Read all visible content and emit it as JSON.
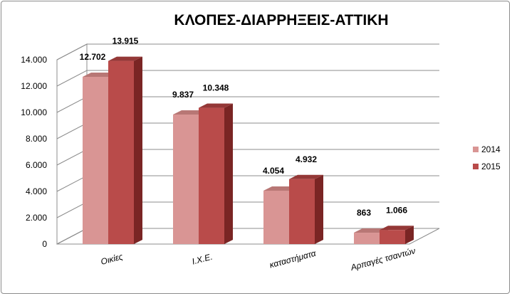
{
  "chart_data": {
    "type": "bar",
    "title": "ΚΛΟΠΕΣ-ΔΙΑΡΡΗΞΕΙΣ-ΑΤΤΙΚΗ",
    "xlabel": "",
    "ylabel": "",
    "categories": [
      "Οικίες",
      "Ι.Χ.Ε.",
      "καταστήματα",
      "Αρπαγές τσαντών"
    ],
    "series": [
      {
        "name": "2014",
        "values": [
          12702,
          9837,
          4054,
          863
        ],
        "labels": [
          "12.702",
          "9.837",
          "4.054",
          "863"
        ],
        "color": "#d99594",
        "side_color": "#a46060",
        "top_color": "#b87775"
      },
      {
        "name": "2015",
        "values": [
          13915,
          10348,
          4932,
          1066
        ],
        "labels": [
          "13.915",
          "10.348",
          "4.932",
          "1.066"
        ],
        "color": "#b94b4a",
        "side_color": "#7a2524",
        "top_color": "#943837"
      }
    ],
    "ylim": [
      0,
      14000
    ],
    "yticks": [
      0,
      2000,
      4000,
      6000,
      8000,
      10000,
      12000,
      14000
    ],
    "ytick_labels": [
      "0",
      "2.000",
      "4.000",
      "6.000",
      "8.000",
      "10.000",
      "12.000",
      "14.000"
    ],
    "grid": true,
    "legend_position": "right",
    "three_d": true
  }
}
